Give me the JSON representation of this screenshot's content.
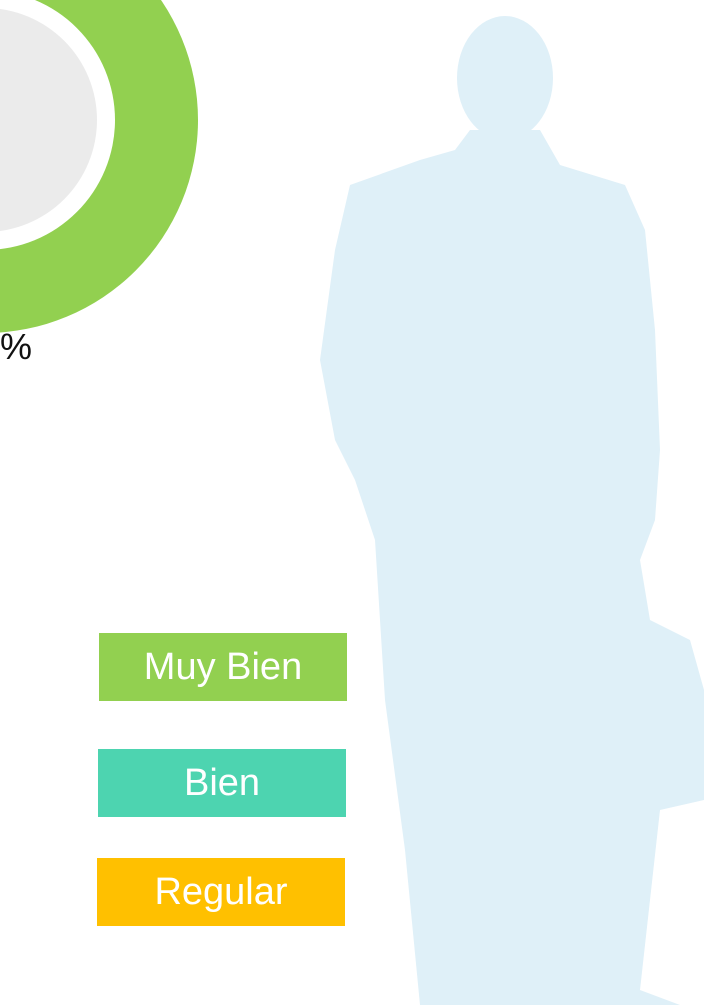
{
  "percent_label": "%",
  "legend": [
    "Muy Bien",
    "Bien",
    "Regular"
  ]
}
